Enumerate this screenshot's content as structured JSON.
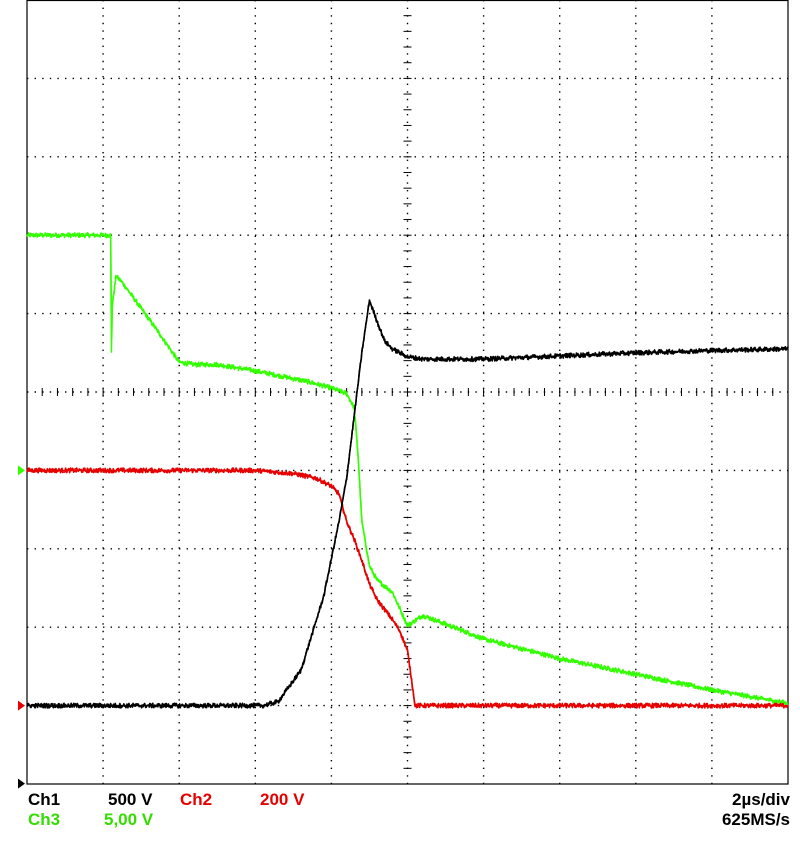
{
  "chart_data": {
    "type": "line",
    "title": "",
    "xlabel": "",
    "ylabel": "",
    "grid": true,
    "divisions": {
      "x": 10,
      "y": 10
    },
    "xlim": [
      0,
      10
    ],
    "ylim": [
      -4,
      6
    ],
    "x_units": "div",
    "y_units": "div",
    "series": [
      {
        "name": "Ch1",
        "color": "#000000",
        "x": [
          0,
          1,
          2,
          3,
          3.1,
          3.3,
          3.6,
          3.9,
          4.1,
          4.2,
          4.3,
          4.4,
          4.5,
          4.6,
          4.7,
          4.8,
          4.9,
          5.0,
          5.2,
          6,
          7,
          8,
          9,
          10
        ],
        "values": [
          -3,
          -3,
          -3,
          -3,
          -3,
          -2.95,
          -2.55,
          -1.6,
          -0.65,
          -0.1,
          0.7,
          1.5,
          2.17,
          1.9,
          1.65,
          1.55,
          1.5,
          1.45,
          1.42,
          1.42,
          1.46,
          1.5,
          1.53,
          1.55
        ]
      },
      {
        "name": "Ch2",
        "color": "#e60000",
        "x": [
          0,
          1,
          2,
          3,
          3.5,
          3.8,
          4.0,
          4.1,
          4.2,
          4.3,
          4.4,
          4.5,
          4.6,
          4.8,
          4.9,
          5.0,
          5.1,
          6,
          7,
          8,
          9,
          10
        ],
        "values": [
          0,
          0,
          0,
          0,
          -0.04,
          -0.1,
          -0.2,
          -0.3,
          -0.65,
          -0.88,
          -1.15,
          -1.45,
          -1.65,
          -1.9,
          -2.05,
          -2.3,
          -3,
          -3,
          -3,
          -3,
          -3,
          -3
        ]
      },
      {
        "name": "Ch3",
        "color": "#33ff00",
        "x": [
          0,
          0.99,
          1.1,
          1.11,
          1.12,
          1.17,
          1.25,
          1.4,
          1.7,
          2.0,
          2.2,
          2.5,
          3.0,
          3.5,
          3.7,
          4.0,
          4.2,
          4.3,
          4.35,
          4.4,
          4.5,
          4.6,
          4.8,
          5.0,
          5.2,
          5.5,
          6.0,
          7.0,
          8.0,
          9.0,
          10.0
        ],
        "values": [
          3,
          3,
          3,
          1.5,
          2.1,
          2.48,
          2.4,
          2.2,
          1.8,
          1.38,
          1.35,
          1.35,
          1.27,
          1.17,
          1.13,
          1.05,
          0.98,
          0.8,
          0.2,
          -0.65,
          -1.22,
          -1.4,
          -1.55,
          -1.98,
          -1.85,
          -1.96,
          -2.15,
          -2.4,
          -2.6,
          -2.8,
          -2.97
        ]
      }
    ],
    "channel_markers": [
      {
        "channel": "Ch3",
        "color": "#33ff00",
        "level": 0
      },
      {
        "channel": "Ch2",
        "color": "#e60000",
        "level": -3
      },
      {
        "channel": "Ch1",
        "color": "#000000",
        "level": -4
      }
    ],
    "readouts": {
      "ch1_label": "Ch1",
      "ch1_scale": "500 V",
      "ch2_label": "Ch2",
      "ch2_scale": "200 V",
      "ch3_label": "Ch3",
      "ch3_scale": "5,00 V",
      "timebase": "2µs/div",
      "sample_rate": "625MS/s"
    }
  }
}
